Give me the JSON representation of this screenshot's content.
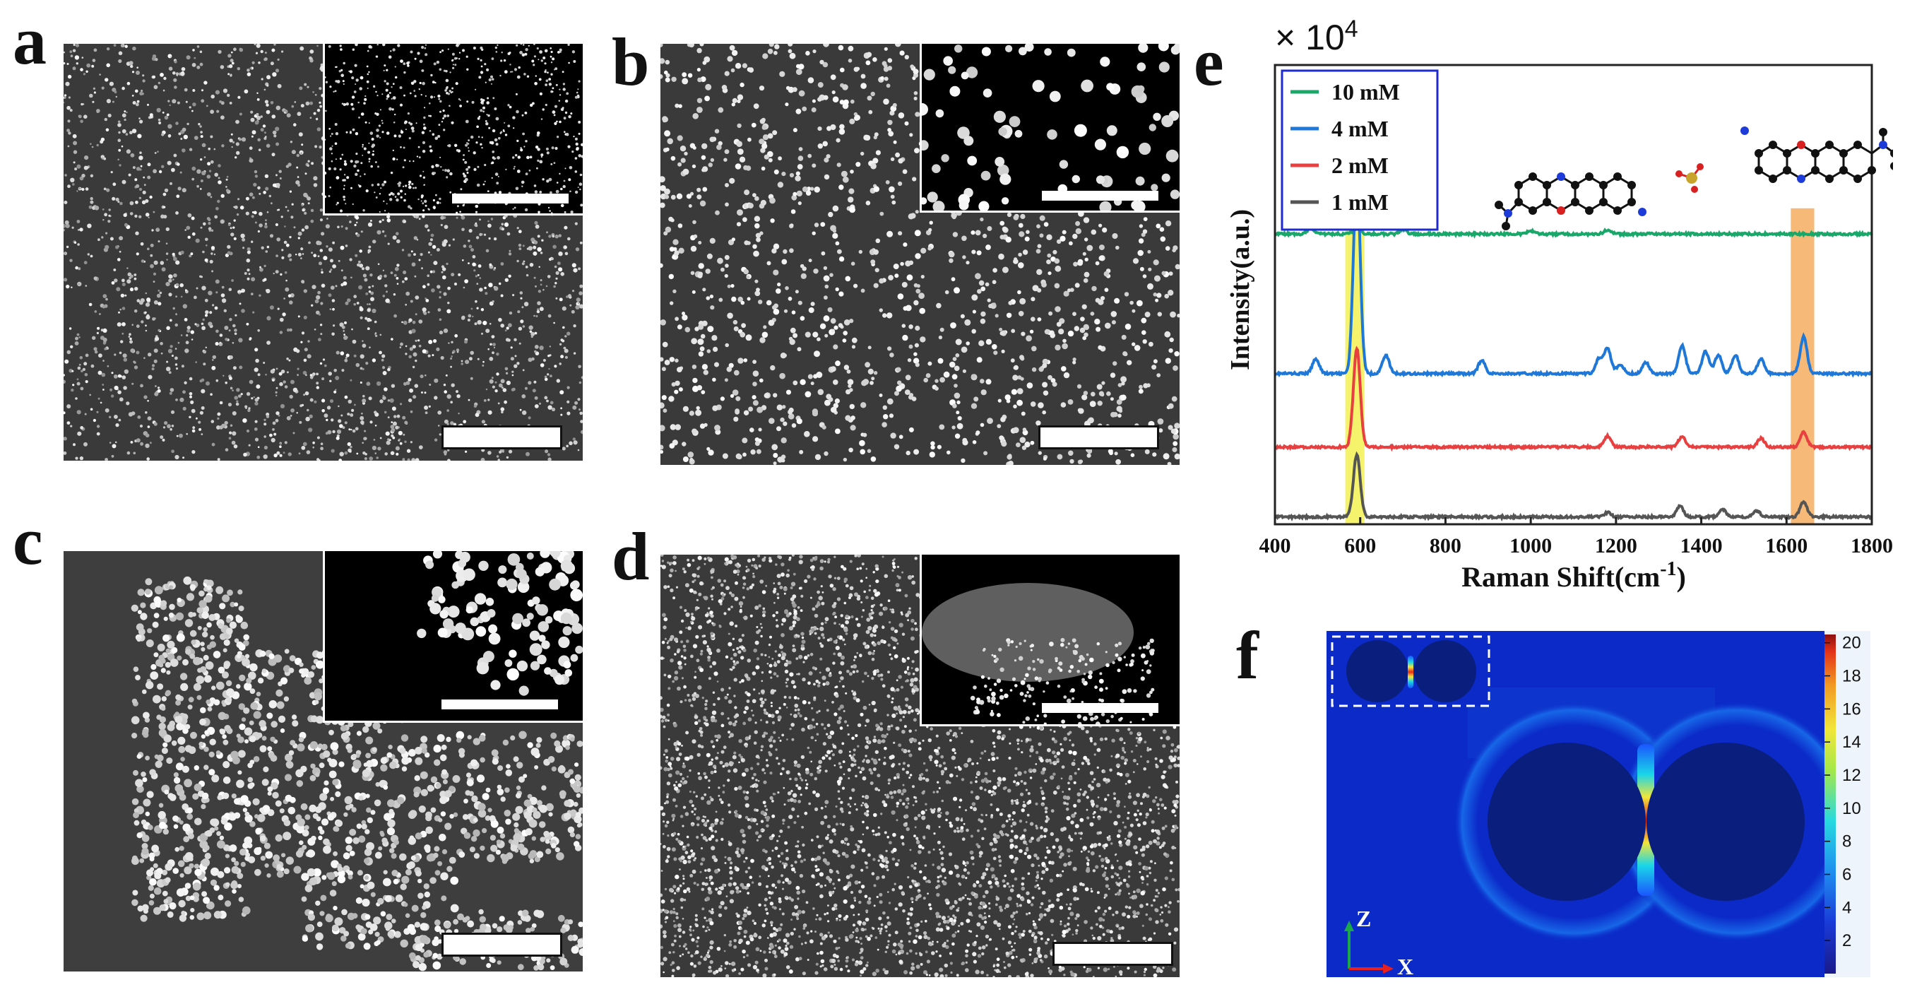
{
  "panels": {
    "a": {
      "letter": "a"
    },
    "b": {
      "letter": "b"
    },
    "c": {
      "letter": "c"
    },
    "d": {
      "letter": "d"
    },
    "e": {
      "letter": "e"
    },
    "f": {
      "letter": "f"
    }
  },
  "chart_data": {
    "type": "line",
    "multiplier_label": "× 10",
    "multiplier_exp": "4",
    "xlabel": "Raman Shift(cm",
    "xlabel_sup": "-1",
    "xlabel_end": ")",
    "ylabel": "Intensity(a.u.)",
    "xlim": [
      400,
      1800
    ],
    "xticks": [
      400,
      600,
      800,
      1000,
      1200,
      1400,
      1600,
      1800
    ],
    "highlight_bands": [
      {
        "from": 565,
        "to": 610,
        "color": "#f2ef3a"
      },
      {
        "from": 1610,
        "to": 1665,
        "color": "#f3a14a"
      }
    ],
    "series": [
      {
        "name": "10 mM",
        "color": "#1aa86a",
        "offset": 3.9,
        "peaks": [
          [
            484,
            0.08
          ],
          [
            592,
            0.08
          ],
          [
            700,
            0.06
          ],
          [
            1000,
            0.04
          ],
          [
            1180,
            0.05
          ]
        ]
      },
      {
        "name": "4 mM",
        "color": "#1f78d8",
        "offset": 2.0,
        "peaks": [
          [
            496,
            0.2
          ],
          [
            592,
            2.7
          ],
          [
            660,
            0.25
          ],
          [
            885,
            0.18
          ],
          [
            1160,
            0.2
          ],
          [
            1180,
            0.35
          ],
          [
            1210,
            0.12
          ],
          [
            1270,
            0.15
          ],
          [
            1355,
            0.38
          ],
          [
            1410,
            0.3
          ],
          [
            1440,
            0.25
          ],
          [
            1480,
            0.25
          ],
          [
            1540,
            0.2
          ],
          [
            1640,
            0.5
          ]
        ]
      },
      {
        "name": "2 mM",
        "color": "#e84040",
        "offset": 1.0,
        "peaks": [
          [
            592,
            1.35
          ],
          [
            1180,
            0.15
          ],
          [
            1355,
            0.15
          ],
          [
            1540,
            0.12
          ],
          [
            1640,
            0.2
          ]
        ]
      },
      {
        "name": "1 mM",
        "color": "#555555",
        "offset": 0.05,
        "peaks": [
          [
            592,
            0.85
          ],
          [
            1180,
            0.06
          ],
          [
            1350,
            0.15
          ],
          [
            1450,
            0.1
          ],
          [
            1530,
            0.08
          ],
          [
            1640,
            0.2
          ]
        ]
      }
    ]
  },
  "colorbar": {
    "ticks": [
      "20",
      "18",
      "16",
      "14",
      "12",
      "10",
      "8",
      "6",
      "4",
      "2"
    ],
    "max": 20.5
  },
  "axes_labels": {
    "z": "Z",
    "x": "X"
  }
}
